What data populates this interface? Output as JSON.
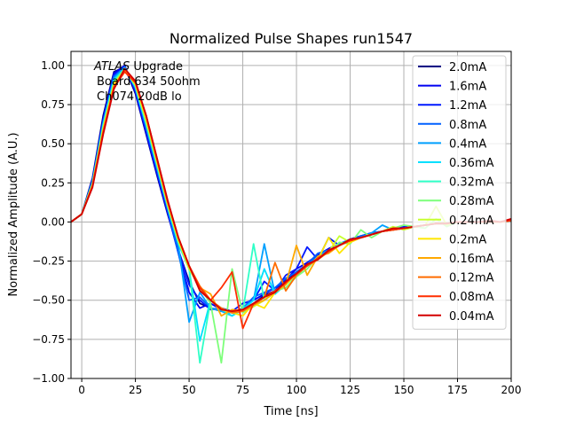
{
  "chart_data": {
    "type": "line",
    "title": "Normalized Pulse Shapes run1547",
    "xlabel": "Time [ns]",
    "ylabel": "Normalized Amplitude (A.U.)",
    "xlim": [
      -5,
      200
    ],
    "ylim": [
      -1.0,
      1.09
    ],
    "xticks": [
      0,
      25,
      50,
      75,
      100,
      125,
      150,
      175,
      200
    ],
    "yticks": [
      -1.0,
      -0.75,
      -0.5,
      -0.25,
      0.0,
      0.25,
      0.5,
      0.75,
      1.0
    ],
    "ytick_labels": [
      "−1.00",
      "−0.75",
      "−0.50",
      "−0.25",
      "0.00",
      "0.25",
      "0.50",
      "0.75",
      "1.00"
    ],
    "grid": true,
    "legend_position": "top-right",
    "annotation": [
      "ATLAS",
      " Upgrade",
      "Board 634 50ohm",
      "Ch074 20dB lo"
    ],
    "x": [
      -5,
      0,
      5,
      10,
      15,
      20,
      25,
      30,
      35,
      40,
      45,
      50,
      55,
      60,
      65,
      70,
      75,
      80,
      85,
      90,
      95,
      100,
      105,
      110,
      115,
      120,
      125,
      130,
      135,
      140,
      145,
      150,
      155,
      160,
      165,
      170,
      175,
      180,
      185,
      190,
      195,
      200
    ],
    "series": [
      {
        "name": "2.0mA",
        "color": "#000084",
        "values": [
          0,
          0.05,
          0.28,
          0.68,
          0.96,
          0.99,
          0.82,
          0.56,
          0.3,
          0.05,
          -0.18,
          -0.38,
          -0.52,
          -0.55,
          -0.57,
          -0.58,
          -0.56,
          -0.52,
          -0.47,
          -0.44,
          -0.38,
          -0.32,
          -0.27,
          -0.22,
          -0.18,
          -0.14,
          -0.12,
          -0.1,
          -0.08,
          -0.06,
          -0.05,
          -0.04,
          -0.03,
          -0.02,
          -0.01,
          -0.01,
          0,
          0,
          0,
          0,
          0,
          0.01
        ]
      },
      {
        "name": "1.6mA",
        "color": "#0000f1",
        "values": [
          0,
          0.05,
          0.27,
          0.66,
          0.95,
          1.0,
          0.83,
          0.57,
          0.31,
          0.06,
          -0.2,
          -0.45,
          -0.55,
          -0.52,
          -0.56,
          -0.58,
          -0.55,
          -0.5,
          -0.46,
          -0.42,
          -0.37,
          -0.3,
          -0.26,
          -0.21,
          -0.17,
          -0.14,
          -0.11,
          -0.09,
          -0.08,
          -0.06,
          -0.05,
          -0.04,
          -0.03,
          -0.02,
          -0.01,
          -0.01,
          0,
          0,
          0,
          0,
          0,
          0.01
        ]
      },
      {
        "name": "1.2mA",
        "color": "#0018ff",
        "values": [
          0,
          0.05,
          0.26,
          0.65,
          0.94,
          0.99,
          0.84,
          0.58,
          0.32,
          0.06,
          -0.18,
          -0.4,
          -0.5,
          -0.56,
          -0.55,
          -0.57,
          -0.52,
          -0.5,
          -0.38,
          -0.44,
          -0.34,
          -0.3,
          -0.16,
          -0.24,
          -0.1,
          -0.15,
          -0.12,
          -0.09,
          -0.07,
          -0.06,
          -0.05,
          -0.03,
          -0.03,
          -0.02,
          -0.01,
          -0.01,
          0,
          0,
          0,
          0,
          0,
          0.01
        ]
      },
      {
        "name": "0.8mA",
        "color": "#0060ff",
        "values": [
          0,
          0.05,
          0.26,
          0.64,
          0.93,
          0.99,
          0.85,
          0.6,
          0.34,
          0.08,
          -0.2,
          -0.5,
          -0.48,
          -0.55,
          -0.56,
          -0.58,
          -0.55,
          -0.48,
          -0.45,
          -0.42,
          -0.36,
          -0.32,
          -0.27,
          -0.2,
          -0.18,
          -0.14,
          -0.11,
          -0.09,
          -0.07,
          -0.06,
          -0.04,
          -0.04,
          -0.03,
          -0.02,
          -0.01,
          -0.01,
          0,
          0,
          0,
          0,
          0,
          0.01
        ]
      },
      {
        "name": "0.4mA",
        "color": "#00a0ff",
        "values": [
          0,
          0.05,
          0.25,
          0.63,
          0.92,
          0.99,
          0.86,
          0.62,
          0.35,
          0.09,
          -0.15,
          -0.64,
          -0.45,
          -0.55,
          -0.57,
          -0.6,
          -0.55,
          -0.5,
          -0.14,
          -0.46,
          -0.38,
          -0.34,
          -0.28,
          -0.22,
          -0.18,
          -0.14,
          -0.11,
          -0.1,
          -0.07,
          -0.02,
          -0.05,
          -0.04,
          -0.03,
          -0.02,
          -0.01,
          -0.01,
          0,
          0,
          0,
          0,
          0,
          0.01
        ]
      },
      {
        "name": "0.36mA",
        "color": "#00e0ff",
        "values": [
          0,
          0.05,
          0.25,
          0.62,
          0.91,
          0.98,
          0.86,
          0.62,
          0.36,
          0.1,
          -0.14,
          -0.3,
          -0.76,
          -0.5,
          -0.56,
          -0.6,
          -0.56,
          -0.5,
          -0.3,
          -0.46,
          -0.4,
          -0.34,
          -0.28,
          -0.23,
          -0.19,
          -0.15,
          -0.12,
          -0.1,
          -0.08,
          -0.06,
          -0.05,
          -0.04,
          -0.03,
          -0.02,
          -0.01,
          -0.01,
          0,
          0,
          0,
          0,
          0,
          0.01
        ]
      },
      {
        "name": "0.32mA",
        "color": "#2fffc7",
        "values": [
          0,
          0.05,
          0.25,
          0.62,
          0.9,
          0.98,
          0.87,
          0.63,
          0.37,
          0.1,
          -0.13,
          -0.3,
          -0.9,
          -0.5,
          -0.55,
          -0.58,
          -0.57,
          -0.14,
          -0.5,
          -0.45,
          -0.4,
          -0.34,
          -0.28,
          -0.23,
          -0.19,
          -0.15,
          -0.12,
          -0.1,
          -0.08,
          -0.06,
          -0.05,
          -0.04,
          -0.03,
          -0.02,
          -0.01,
          -0.01,
          0,
          0,
          0,
          0,
          0,
          0.01
        ]
      },
      {
        "name": "0.28mA",
        "color": "#7dff7a",
        "values": [
          0,
          0.05,
          0.24,
          0.6,
          0.89,
          0.98,
          0.87,
          0.64,
          0.38,
          0.11,
          -0.12,
          -0.3,
          -0.42,
          -0.52,
          -0.9,
          -0.3,
          -0.58,
          -0.54,
          -0.5,
          -0.44,
          -0.42,
          -0.35,
          -0.3,
          -0.22,
          -0.2,
          -0.13,
          -0.14,
          -0.05,
          -0.1,
          -0.06,
          -0.04,
          -0.02,
          -0.03,
          -0.04,
          0.02,
          -0.03,
          0,
          0,
          0,
          0,
          0,
          0.01
        ]
      },
      {
        "name": "0.24mA",
        "color": "#c7ff30",
        "values": [
          0,
          0.05,
          0.24,
          0.6,
          0.88,
          0.97,
          0.88,
          0.65,
          0.38,
          0.11,
          -0.12,
          -0.3,
          -0.42,
          -0.5,
          -0.56,
          -0.58,
          -0.57,
          -0.54,
          -0.5,
          -0.44,
          -0.4,
          -0.33,
          -0.28,
          -0.24,
          -0.19,
          -0.09,
          -0.13,
          -0.1,
          -0.08,
          -0.06,
          -0.03,
          -0.05,
          -0.03,
          -0.02,
          0.1,
          -0.02,
          0,
          0,
          0,
          0,
          0,
          0.01
        ]
      },
      {
        "name": "0.2mA",
        "color": "#ffe600",
        "values": [
          0,
          0.05,
          0.24,
          0.59,
          0.88,
          0.97,
          0.88,
          0.66,
          0.39,
          0.12,
          -0.11,
          -0.29,
          -0.42,
          -0.5,
          -0.56,
          -0.58,
          -0.6,
          -0.52,
          -0.55,
          -0.45,
          -0.4,
          -0.33,
          -0.28,
          -0.24,
          -0.1,
          -0.2,
          -0.13,
          -0.1,
          -0.08,
          -0.06,
          -0.05,
          -0.04,
          -0.03,
          -0.02,
          -0.01,
          -0.01,
          0,
          0,
          0,
          0,
          0,
          0.01
        ]
      },
      {
        "name": "0.16mA",
        "color": "#ffa800",
        "values": [
          0,
          0.05,
          0.23,
          0.58,
          0.87,
          0.97,
          0.89,
          0.67,
          0.4,
          0.13,
          -0.1,
          -0.28,
          -0.42,
          -0.46,
          -0.6,
          -0.56,
          -0.57,
          -0.53,
          -0.5,
          -0.45,
          -0.4,
          -0.15,
          -0.34,
          -0.22,
          -0.2,
          -0.15,
          -0.12,
          -0.1,
          -0.08,
          -0.06,
          -0.05,
          -0.04,
          -0.03,
          -0.02,
          -0.01,
          -0.01,
          0,
          0,
          0,
          0,
          0,
          0.01
        ]
      },
      {
        "name": "0.12mA",
        "color": "#ff6c00",
        "values": [
          0,
          0.05,
          0.23,
          0.58,
          0.86,
          0.96,
          0.89,
          0.68,
          0.4,
          0.13,
          -0.1,
          -0.28,
          -0.41,
          -0.5,
          -0.55,
          -0.58,
          -0.57,
          -0.53,
          -0.48,
          -0.26,
          -0.44,
          -0.34,
          -0.28,
          -0.24,
          -0.19,
          -0.15,
          -0.12,
          -0.1,
          -0.08,
          -0.06,
          -0.05,
          -0.04,
          -0.03,
          -0.02,
          -0.01,
          -0.01,
          0,
          0,
          0,
          0,
          0,
          0.01
        ]
      },
      {
        "name": "0.08mA",
        "color": "#ff2d00",
        "values": [
          0,
          0.05,
          0.23,
          0.57,
          0.86,
          0.96,
          0.89,
          0.68,
          0.41,
          0.13,
          -0.1,
          -0.28,
          -0.42,
          -0.5,
          -0.42,
          -0.32,
          -0.68,
          -0.52,
          -0.48,
          -0.44,
          -0.39,
          -0.33,
          -0.28,
          -0.23,
          -0.19,
          -0.15,
          -0.12,
          -0.1,
          -0.08,
          -0.06,
          -0.05,
          -0.04,
          -0.03,
          -0.02,
          -0.01,
          -0.01,
          0,
          0,
          0,
          0,
          0,
          0.01
        ]
      },
      {
        "name": "0.04mA",
        "color": "#d40000",
        "values": [
          0,
          0.05,
          0.22,
          0.56,
          0.85,
          0.98,
          0.9,
          0.68,
          0.41,
          0.14,
          -0.1,
          -0.28,
          -0.44,
          -0.5,
          -0.56,
          -0.57,
          -0.56,
          -0.52,
          -0.48,
          -0.45,
          -0.38,
          -0.33,
          -0.27,
          -0.24,
          -0.18,
          -0.15,
          -0.11,
          -0.1,
          -0.08,
          -0.06,
          -0.04,
          -0.04,
          -0.03,
          -0.02,
          -0.01,
          -0.01,
          0,
          0,
          0,
          0.01,
          0,
          0.02
        ]
      }
    ]
  }
}
